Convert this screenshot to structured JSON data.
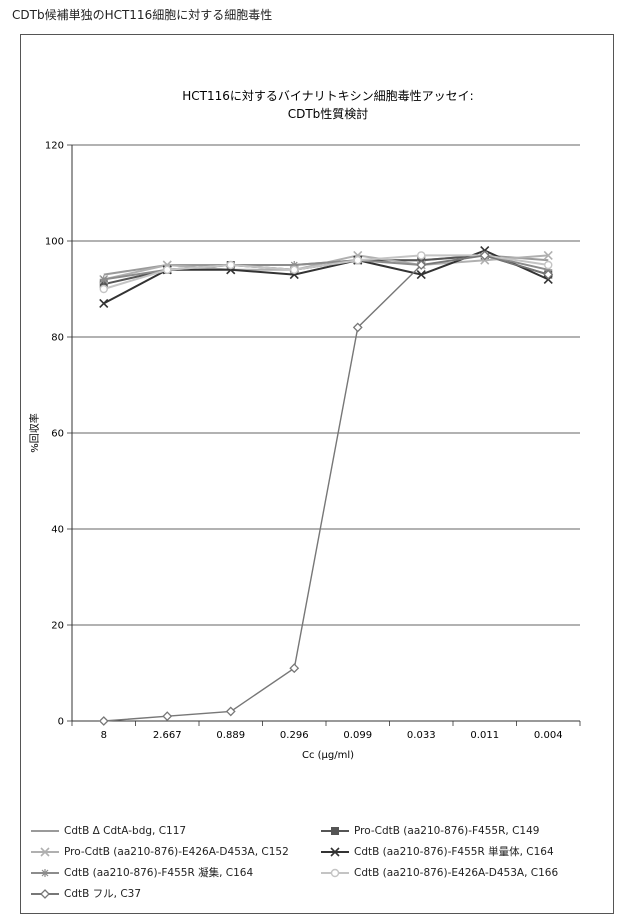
{
  "page_title": "CDTb候補単独のHCT116細胞に対する細胞毒性",
  "chart_data": {
    "type": "line",
    "title": "HCT116に対するバイナリトキシン細胞毒性アッセイ:",
    "subtitle": "CDTb性質検討",
    "xlabel": "Cc (µg/ml)",
    "ylabel": "%回収率",
    "categories": [
      "8",
      "2.667",
      "0.889",
      "0.296",
      "0.099",
      "0.033",
      "0.011",
      "0.004"
    ],
    "ylim": [
      0,
      120
    ],
    "yticks": [
      0,
      20,
      40,
      60,
      80,
      100,
      120
    ],
    "grid": "horizontal",
    "legend_position": "bottom",
    "series": [
      {
        "name": "CdtB Δ CdtA-bdg, C117",
        "color": "#9a9a9a",
        "marker": "none",
        "values": [
          93,
          95,
          95,
          95,
          96,
          96,
          97,
          96
        ]
      },
      {
        "name": "Pro-CdtB (aa210-876)-F455R, C149",
        "color": "#555555",
        "marker": "square",
        "values": [
          91,
          94,
          95,
          94,
          96,
          96,
          97,
          93
        ]
      },
      {
        "name": "Pro-CdtB (aa210-876)-E426A-D453A, C152",
        "color": "#b0b0b0",
        "marker": "x",
        "values": [
          92,
          95,
          94,
          94,
          97,
          95,
          96,
          97
        ]
      },
      {
        "name": "CdtB (aa210-876)-F455R 単量体, C164",
        "color": "#333333",
        "marker": "x",
        "values": [
          87,
          94,
          94,
          93,
          96,
          93,
          98,
          92
        ]
      },
      {
        "name": "CdtB (aa210-876)-F455R 凝集, C164",
        "color": "#8c8c8c",
        "marker": "star",
        "values": [
          92,
          94,
          95,
          95,
          96,
          95,
          97,
          94
        ]
      },
      {
        "name": "CdtB (aa210-876)-E426A-D453A, C166",
        "color": "#c4c4c4",
        "marker": "circle",
        "values": [
          90,
          94,
          95,
          94,
          96,
          97,
          97,
          95
        ]
      },
      {
        "name": "CdtB フル, C37",
        "color": "#777777",
        "marker": "diamond",
        "values": [
          0,
          1,
          2,
          11,
          82,
          95,
          97,
          93
        ]
      }
    ]
  }
}
